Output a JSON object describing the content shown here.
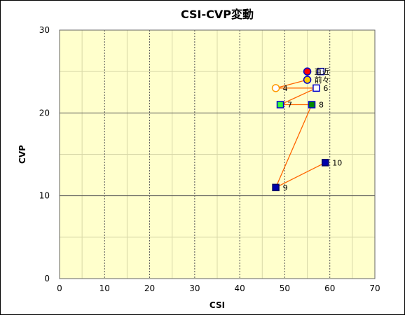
{
  "chart_data": {
    "type": "scatter",
    "title": "CSI-CVP変動",
    "xlabel": "CSI",
    "ylabel": "CVP",
    "xlim": [
      0,
      70
    ],
    "ylim": [
      0,
      30
    ],
    "x_ticks": [
      0,
      10,
      20,
      30,
      40,
      50,
      60,
      70
    ],
    "y_ticks": [
      0,
      10,
      20,
      30
    ],
    "grid": true,
    "minor_grid_x": 5,
    "minor_grid_y": 5,
    "background": "#ffffcc",
    "line_color": "#ff6600",
    "points": [
      {
        "label": "直近",
        "x": 55,
        "y": 25,
        "marker": "circle",
        "fill": "#ff0000",
        "stroke": "#0000cc"
      },
      {
        "label": "前々",
        "x": 55,
        "y": 24,
        "marker": "circle",
        "fill": "#ffcc00",
        "stroke": "#0000cc"
      },
      {
        "label": "",
        "x": 58,
        "y": 25,
        "marker": "square",
        "fill": "#ffffff",
        "stroke": "#0000cc"
      },
      {
        "label": "4",
        "x": 48,
        "y": 23,
        "marker": "circle",
        "fill": "#ffffff",
        "stroke": "#ff9900"
      },
      {
        "label": "6",
        "x": 57,
        "y": 23,
        "marker": "square",
        "fill": "#ffffff",
        "stroke": "#0000cc"
      },
      {
        "label": "7",
        "x": 49,
        "y": 21,
        "marker": "square",
        "fill": "#33ff33",
        "stroke": "#0000cc"
      },
      {
        "label": "8",
        "x": 56,
        "y": 21,
        "marker": "square",
        "fill": "#008800",
        "stroke": "#0000cc"
      },
      {
        "label": "9",
        "x": 48,
        "y": 11,
        "marker": "square",
        "fill": "#0000aa",
        "stroke": "#000066"
      },
      {
        "label": "10",
        "x": 59,
        "y": 14,
        "marker": "square",
        "fill": "#0000aa",
        "stroke": "#000066"
      }
    ],
    "path_order": [
      0,
      1,
      3,
      4,
      5,
      6,
      7,
      8
    ]
  }
}
